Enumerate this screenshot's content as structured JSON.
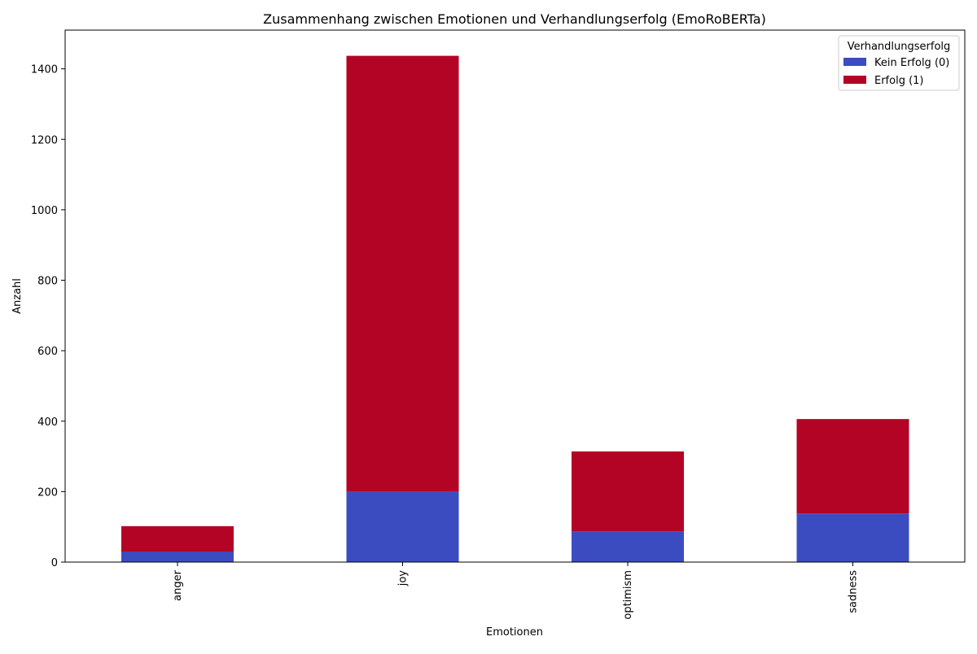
{
  "chart_data": {
    "type": "bar",
    "stacked": true,
    "title": "Zusammenhang zwischen Emotionen und Verhandlungserfolg (EmoRoBERTa)",
    "xlabel": "Emotionen",
    "ylabel": "Anzahl",
    "categories": [
      "anger",
      "joy",
      "optimism",
      "sadness"
    ],
    "series": [
      {
        "name": "Kein Erfolg (0)",
        "color": "#3b4cc0",
        "values": [
          30,
          200,
          87,
          138
        ]
      },
      {
        "name": "Erfolg (1)",
        "color": "#b40426",
        "values": [
          72,
          1237,
          227,
          268
        ]
      }
    ],
    "ylim": [
      0,
      1510
    ],
    "yticks": [
      0,
      200,
      400,
      600,
      800,
      1000,
      1200,
      1400
    ],
    "legend": {
      "title": "Verhandlungserfolg",
      "placement": "top-right"
    },
    "grid": false
  }
}
